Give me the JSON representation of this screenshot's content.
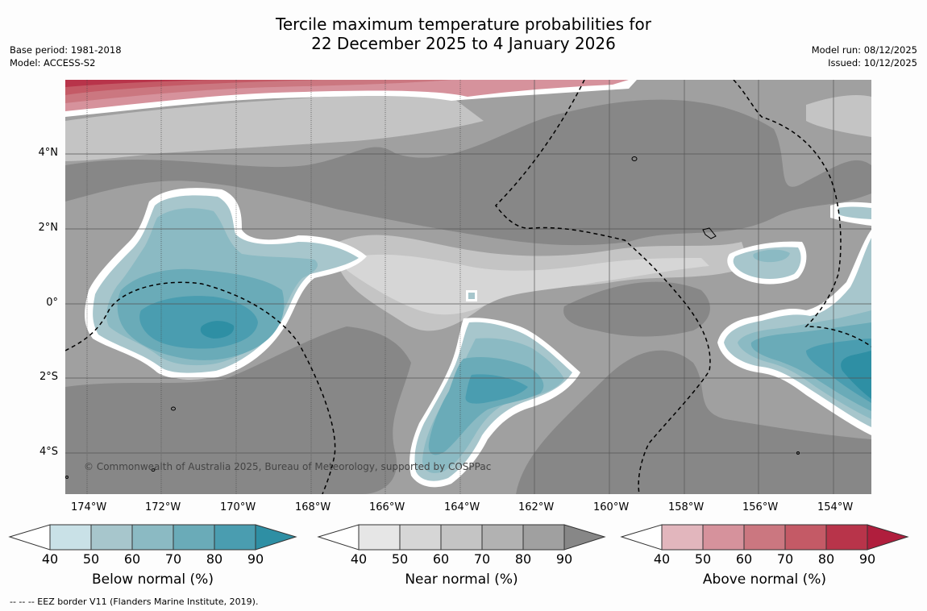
{
  "title": {
    "line1": "Tercile maximum temperature probabilities for",
    "line2": "22 December 2025 to 4 January 2026"
  },
  "meta_left": {
    "base_period": "Base period: 1981-2018",
    "model": "Model: ACCESS-S2"
  },
  "meta_right": {
    "model_run": "Model run: 08/12/2025",
    "issued": "Issued: 10/12/2025"
  },
  "map": {
    "longitude_labels": [
      "174°W",
      "172°W",
      "170°W",
      "168°W",
      "166°W",
      "164°W",
      "162°W",
      "160°W",
      "158°W",
      "156°W",
      "154°W"
    ],
    "latitude_labels": [
      "4°N",
      "2°N",
      "0°",
      "2°S",
      "4°S"
    ],
    "copyright": "© Commonwealth of Australia 2025, Bureau of Meteorology, supported by COSPPac"
  },
  "colorbars": [
    {
      "title": "Below normal (%)",
      "ticks": [
        "40",
        "50",
        "60",
        "70",
        "80",
        "90"
      ],
      "colors": [
        "#ffffff",
        "#c9e1e7",
        "#a7c6cc",
        "#8bbac3",
        "#6aabb8",
        "#4a9db0",
        "#2e8fa4"
      ]
    },
    {
      "title": "Near normal (%)",
      "ticks": [
        "40",
        "50",
        "60",
        "70",
        "80",
        "90"
      ],
      "colors": [
        "#ffffff",
        "#e6e6e6",
        "#d6d6d6",
        "#c4c4c4",
        "#b2b2b2",
        "#a0a0a0",
        "#878787"
      ]
    },
    {
      "title": "Above normal (%)",
      "ticks": [
        "40",
        "50",
        "60",
        "70",
        "80",
        "90"
      ],
      "colors": [
        "#ffffff",
        "#e2b6bd",
        "#d6929c",
        "#cb7780",
        "#c45a66",
        "#b8344a",
        "#b01e3d"
      ]
    }
  ],
  "footer": "--  --  -- EEZ border V11 (Flanders Marine Institute, 2019)."
}
